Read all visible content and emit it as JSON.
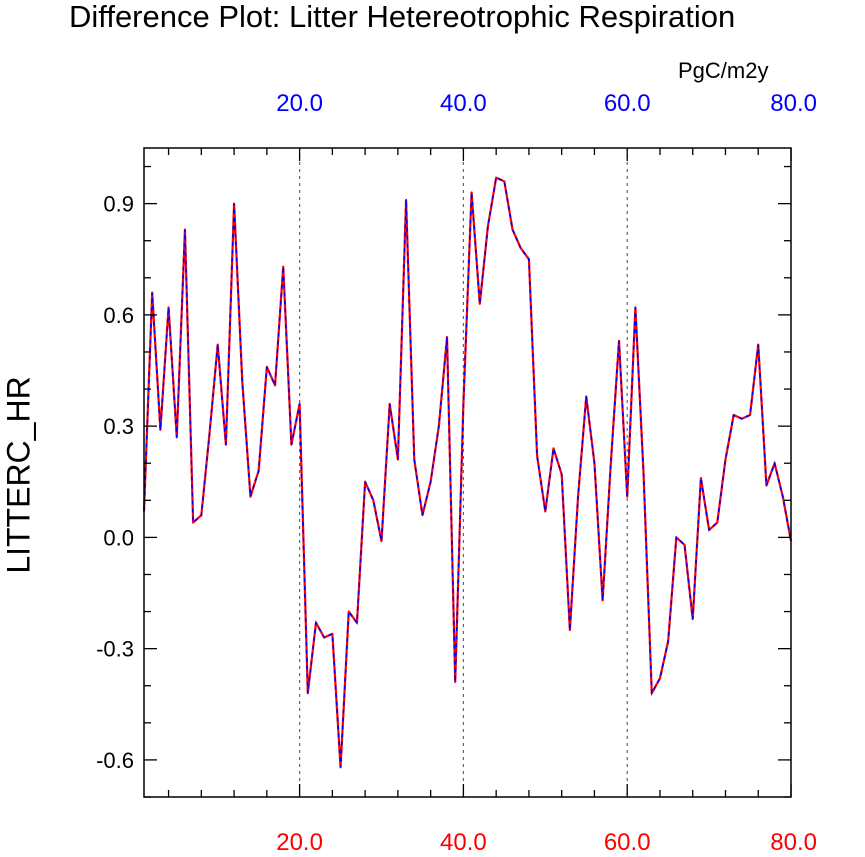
{
  "chart_data": {
    "type": "line",
    "title": "Difference Plot: Litter Hetereotrophic Respiration",
    "units": "PgC/m2y",
    "ylabel": "LITTERC_HR",
    "xlabel": "",
    "xlim": [
      1,
      80
    ],
    "ylim": [
      -0.7,
      1.05
    ],
    "yticks": [
      {
        "value": 0.9,
        "label": "0.9"
      },
      {
        "value": 0.6,
        "label": "0.6"
      },
      {
        "value": 0.3,
        "label": "0.3"
      },
      {
        "value": 0.0,
        "label": "0.0"
      },
      {
        "value": -0.3,
        "label": "-0.3"
      },
      {
        "value": -0.6,
        "label": "-0.6"
      }
    ],
    "xticks_bottom": [
      {
        "value": 20,
        "label": "20.0"
      },
      {
        "value": 40,
        "label": "40.0"
      },
      {
        "value": 60,
        "label": "60.0"
      },
      {
        "value": 80,
        "label": "80.0"
      }
    ],
    "xticks_top": [
      {
        "value": 20,
        "label": "20.0"
      },
      {
        "value": 40,
        "label": "40.0"
      },
      {
        "value": 60,
        "label": "60.0"
      },
      {
        "value": 80,
        "label": "80.0"
      }
    ],
    "vertical_reference_lines": [
      20,
      40,
      60
    ],
    "colors": {
      "bottom_axis_labels": "#ff0000",
      "top_axis_labels": "#0000ff",
      "series_red": "#ff0000",
      "series_blue": "#0000ff",
      "reference_lines": "#666666"
    },
    "series": [
      {
        "name": "series-red-solid",
        "x": [
          1,
          2,
          3,
          4,
          5,
          6,
          7,
          8,
          9,
          10,
          11,
          12,
          13,
          14,
          15,
          16,
          17,
          18,
          19,
          20,
          21,
          22,
          23,
          24,
          25,
          26,
          27,
          28,
          29,
          30,
          31,
          32,
          33,
          34,
          35,
          36,
          37,
          38,
          39,
          40,
          41,
          42,
          43,
          44,
          45,
          46,
          47,
          48,
          49,
          50,
          51,
          52,
          53,
          54,
          55,
          56,
          57,
          58,
          59,
          60,
          61,
          62,
          63,
          64,
          65,
          66,
          67,
          68,
          69,
          70,
          71,
          72,
          73,
          74,
          75,
          76,
          77,
          78,
          79,
          80
        ],
        "values": [
          0.07,
          0.66,
          0.29,
          0.62,
          0.27,
          0.83,
          0.04,
          0.06,
          0.28,
          0.52,
          0.25,
          0.9,
          0.42,
          0.11,
          0.18,
          0.46,
          0.41,
          0.73,
          0.25,
          0.36,
          -0.42,
          -0.23,
          -0.27,
          -0.26,
          -0.62,
          -0.2,
          -0.23,
          0.15,
          0.1,
          -0.01,
          0.36,
          0.21,
          0.91,
          0.21,
          0.06,
          0.15,
          0.3,
          0.54,
          -0.39,
          0.36,
          0.93,
          0.63,
          0.84,
          0.97,
          0.96,
          0.83,
          0.78,
          0.75,
          0.22,
          0.07,
          0.24,
          0.17,
          -0.25,
          0.11,
          0.38,
          0.2,
          -0.17,
          0.2,
          0.53,
          0.11,
          0.62,
          0.17,
          -0.42,
          -0.38,
          -0.28,
          0.0,
          -0.02,
          -0.22,
          0.16,
          0.02,
          0.04,
          0.21,
          0.33,
          0.32,
          0.33,
          0.52,
          0.14,
          0.2,
          0.11,
          -0.01
        ]
      },
      {
        "name": "series-blue-dashed",
        "x": [
          1,
          2,
          3,
          4,
          5,
          6,
          7,
          8,
          9,
          10,
          11,
          12,
          13,
          14,
          15,
          16,
          17,
          18,
          19,
          20,
          21,
          22,
          23,
          24,
          25,
          26,
          27,
          28,
          29,
          30,
          31,
          32,
          33,
          34,
          35,
          36,
          37,
          38,
          39,
          40,
          41,
          42,
          43,
          44,
          45,
          46,
          47,
          48,
          49,
          50,
          51,
          52,
          53,
          54,
          55,
          56,
          57,
          58,
          59,
          60,
          61,
          62,
          63,
          64,
          65,
          66,
          67,
          68,
          69,
          70,
          71,
          72,
          73,
          74,
          75,
          76,
          77,
          78,
          79,
          80
        ],
        "values": [
          0.07,
          0.66,
          0.29,
          0.62,
          0.27,
          0.83,
          0.04,
          0.06,
          0.28,
          0.52,
          0.25,
          0.9,
          0.42,
          0.11,
          0.18,
          0.46,
          0.41,
          0.73,
          0.25,
          0.36,
          -0.42,
          -0.23,
          -0.27,
          -0.26,
          -0.62,
          -0.2,
          -0.23,
          0.15,
          0.1,
          -0.01,
          0.36,
          0.21,
          0.91,
          0.21,
          0.06,
          0.15,
          0.3,
          0.54,
          -0.39,
          0.36,
          0.93,
          0.63,
          0.84,
          0.97,
          0.96,
          0.83,
          0.78,
          0.75,
          0.22,
          0.07,
          0.24,
          0.17,
          -0.25,
          0.11,
          0.38,
          0.2,
          -0.17,
          0.2,
          0.53,
          0.11,
          0.62,
          0.17,
          -0.42,
          -0.38,
          -0.28,
          0.0,
          -0.02,
          -0.22,
          0.16,
          0.02,
          0.04,
          0.21,
          0.33,
          0.32,
          0.33,
          0.52,
          0.14,
          0.2,
          0.11,
          -0.01
        ]
      }
    ]
  }
}
